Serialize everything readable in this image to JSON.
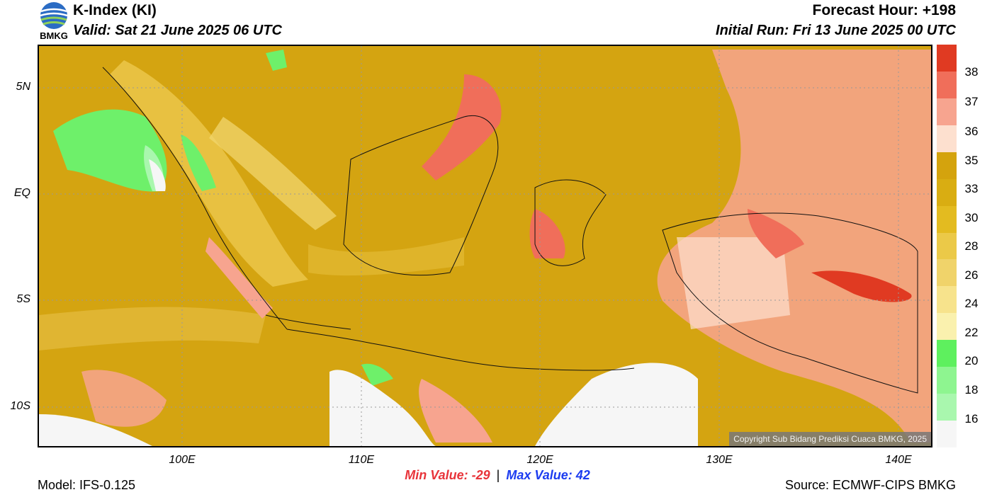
{
  "header": {
    "logo_text": "BMKG",
    "title": "K-Index (KI)",
    "valid": "Valid: Sat 21 June 2025 06 UTC",
    "forecast_hour": "Forecast Hour: +198",
    "initial_run": "Initial Run: Fri 13 June 2025 00 UTC"
  },
  "map": {
    "lat_labels": [
      "5N",
      "EQ",
      "5S",
      "10S"
    ],
    "lon_labels": [
      "100E",
      "110E",
      "120E",
      "130E",
      "140E"
    ],
    "copyright": "Copyright Sub Bidang Prediksi Cuaca BMKG, 2025"
  },
  "colorbar": {
    "labels": [
      "38",
      "37",
      "36",
      "35",
      "33",
      "30",
      "28",
      "26",
      "24",
      "22",
      "20",
      "18",
      "16"
    ],
    "colors": [
      "#e03a22",
      "#f06e5a",
      "#f7a48f",
      "#fde0cf",
      "#d4a30d",
      "#d9ad12",
      "#e3bb20",
      "#ebc948",
      "#f0d36a",
      "#f7e38c",
      "#faf1ae",
      "#5ef05e",
      "#8ef590",
      "#a9f7ae",
      "#f6f6f6"
    ]
  },
  "stats": {
    "min_label": "Min Value: -29",
    "separator": "|",
    "max_label": "Max Value:  42",
    "min_color": "#e8343a",
    "max_color": "#1c3cf0"
  },
  "footer": {
    "model": "Model: IFS-0.125",
    "source": "Source: ECMWF-CIPS BMKG"
  }
}
